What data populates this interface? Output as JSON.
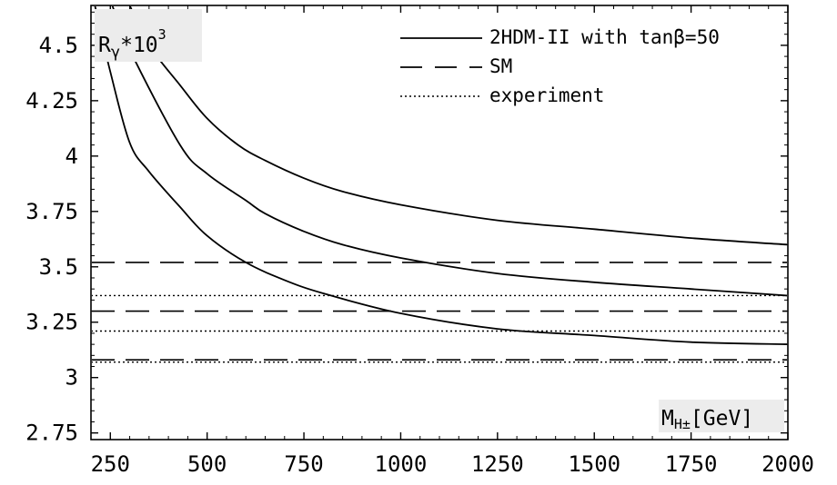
{
  "chart_data": {
    "type": "line",
    "ylabel": {
      "base": "R",
      "sub": "γ",
      "mid": "*10",
      "sup": "3"
    },
    "xlabel": {
      "base": "M",
      "sub": "H±",
      "unit": "[GeV]"
    },
    "xlim": [
      200,
      2000
    ],
    "ylim": [
      2.72,
      4.68
    ],
    "xticks": [
      250,
      500,
      750,
      1000,
      1250,
      1500,
      1750,
      2000
    ],
    "xtick_labels": [
      "250",
      "500",
      "750",
      "1000",
      "1250",
      "1500",
      "1750",
      "2000"
    ],
    "yticks": [
      2.75,
      3,
      3.25,
      3.5,
      3.75,
      4,
      4.25,
      4.5
    ],
    "ytick_labels": [
      "2.75",
      "3",
      "3.25",
      "3.5",
      "3.75",
      "4",
      "4.25",
      "4.5"
    ],
    "legend": {
      "placement": "top-right",
      "entries": [
        {
          "label": "2HDM-II with tanβ=50",
          "style": "solid"
        },
        {
          "label": "SM",
          "style": "dashed"
        },
        {
          "label": "experiment",
          "style": "dotted"
        }
      ]
    },
    "series": [
      {
        "style": "solid",
        "points": [
          [
            300,
            4.68
          ],
          [
            350,
            4.5
          ],
          [
            430,
            4.32
          ],
          [
            500,
            4.17
          ],
          [
            580,
            4.05
          ],
          [
            650,
            3.98
          ],
          [
            750,
            3.9
          ],
          [
            850,
            3.84
          ],
          [
            1000,
            3.78
          ],
          [
            1250,
            3.71
          ],
          [
            1500,
            3.67
          ],
          [
            1750,
            3.63
          ],
          [
            2000,
            3.6
          ]
        ]
      },
      {
        "style": "solid",
        "points": [
          [
            255,
            4.68
          ],
          [
            300,
            4.48
          ],
          [
            430,
            4.05
          ],
          [
            500,
            3.92
          ],
          [
            600,
            3.8
          ],
          [
            650,
            3.74
          ],
          [
            750,
            3.66
          ],
          [
            850,
            3.6
          ],
          [
            1000,
            3.54
          ],
          [
            1250,
            3.47
          ],
          [
            1500,
            3.43
          ],
          [
            1750,
            3.4
          ],
          [
            2000,
            3.37
          ]
        ]
      },
      {
        "style": "solid",
        "points": [
          [
            210,
            4.68
          ],
          [
            250,
            4.38
          ],
          [
            300,
            4.06
          ],
          [
            350,
            3.93
          ],
          [
            430,
            3.77
          ],
          [
            500,
            3.64
          ],
          [
            600,
            3.52
          ],
          [
            700,
            3.44
          ],
          [
            800,
            3.38
          ],
          [
            1000,
            3.29
          ],
          [
            1250,
            3.22
          ],
          [
            1500,
            3.19
          ],
          [
            1750,
            3.16
          ],
          [
            2000,
            3.15
          ]
        ]
      }
    ],
    "hlines": [
      {
        "style": "dashed",
        "y": 3.52
      },
      {
        "style": "dashed",
        "y": 3.3
      },
      {
        "style": "dashed",
        "y": 3.08
      },
      {
        "style": "dotted",
        "y": 3.37
      },
      {
        "style": "dotted",
        "y": 3.21
      },
      {
        "style": "dotted",
        "y": 3.07
      }
    ],
    "grid": false
  }
}
